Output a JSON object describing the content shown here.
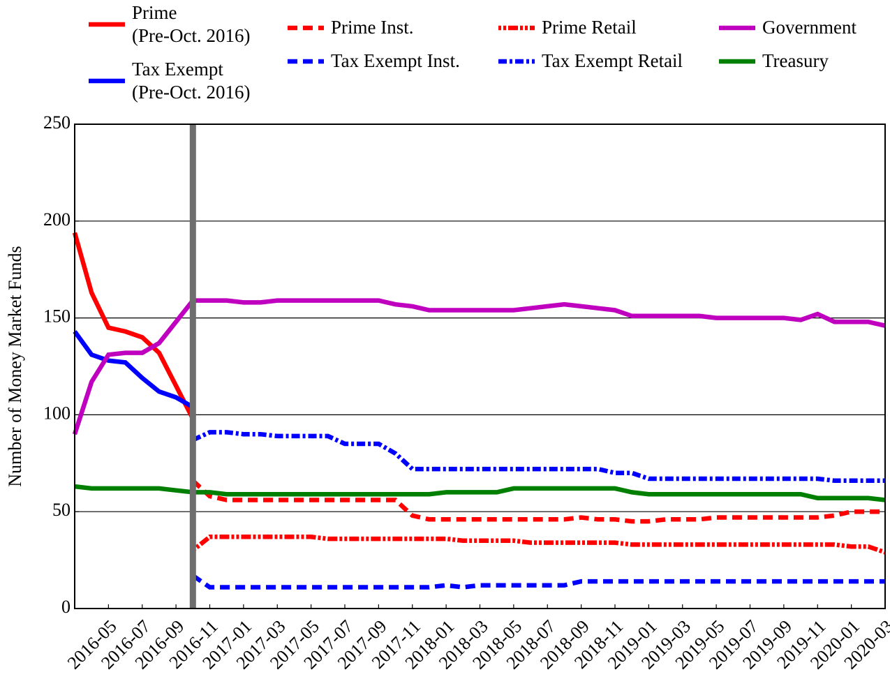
{
  "chart_data": {
    "type": "line",
    "y_label": "Number of Money Market Funds",
    "x": [
      "2016-03",
      "2016-04",
      "2016-05",
      "2016-06",
      "2016-07",
      "2016-08",
      "2016-09",
      "2016-10",
      "2016-11",
      "2016-12",
      "2017-01",
      "2017-02",
      "2017-03",
      "2017-04",
      "2017-05",
      "2017-06",
      "2017-07",
      "2017-08",
      "2017-09",
      "2017-10",
      "2017-11",
      "2017-12",
      "2018-01",
      "2018-02",
      "2018-03",
      "2018-04",
      "2018-05",
      "2018-06",
      "2018-07",
      "2018-08",
      "2018-09",
      "2018-10",
      "2018-11",
      "2018-12",
      "2019-01",
      "2019-02",
      "2019-03",
      "2019-04",
      "2019-05",
      "2019-06",
      "2019-07",
      "2019-08",
      "2019-09",
      "2019-10",
      "2019-11",
      "2019-12",
      "2020-01",
      "2020-02",
      "2020-03"
    ],
    "xlim": [
      "2016-03",
      "2020-03"
    ],
    "xticks": [
      "2016-05",
      "2016-07",
      "2016-09",
      "2016-11",
      "2017-01",
      "2017-03",
      "2017-05",
      "2017-07",
      "2017-09",
      "2017-11",
      "2018-01",
      "2018-03",
      "2018-05",
      "2018-07",
      "2018-09",
      "2018-11",
      "2019-01",
      "2019-03",
      "2019-05",
      "2019-07",
      "2019-09",
      "2019-11",
      "2020-01",
      "2020-03"
    ],
    "ylim": [
      0,
      250
    ],
    "yticks": [
      0,
      50,
      100,
      150,
      200,
      250
    ],
    "grid": true,
    "vline": {
      "x": "2016-10",
      "color": "#6e6e6e"
    },
    "series": [
      {
        "name": "Prime\n(Pre-Oct. 2016)",
        "color": "#ff0000",
        "dash": "solid",
        "values": [
          194,
          163,
          145,
          143,
          140,
          132,
          115,
          98,
          null,
          null,
          null,
          null,
          null,
          null,
          null,
          null,
          null,
          null,
          null,
          null,
          null,
          null,
          null,
          null,
          null,
          null,
          null,
          null,
          null,
          null,
          null,
          null,
          null,
          null,
          null,
          null,
          null,
          null,
          null,
          null,
          null,
          null,
          null,
          null,
          null,
          null,
          null,
          null,
          null
        ]
      },
      {
        "name": "Tax Exempt\n(Pre-Oct. 2016)",
        "color": "#0000ff",
        "dash": "solid",
        "values": [
          143,
          131,
          128,
          127,
          119,
          112,
          109,
          104,
          null,
          null,
          null,
          null,
          null,
          null,
          null,
          null,
          null,
          null,
          null,
          null,
          null,
          null,
          null,
          null,
          null,
          null,
          null,
          null,
          null,
          null,
          null,
          null,
          null,
          null,
          null,
          null,
          null,
          null,
          null,
          null,
          null,
          null,
          null,
          null,
          null,
          null,
          null,
          null,
          null
        ]
      },
      {
        "name": "Prime Inst.",
        "color": "#ff0000",
        "dash": "dashed",
        "values": [
          null,
          null,
          null,
          null,
          null,
          null,
          null,
          66,
          58,
          56,
          56,
          56,
          56,
          56,
          56,
          56,
          56,
          56,
          56,
          56,
          48,
          46,
          46,
          46,
          46,
          46,
          46,
          46,
          46,
          46,
          47,
          46,
          46,
          45,
          45,
          46,
          46,
          46,
          47,
          47,
          47,
          47,
          47,
          47,
          47,
          48,
          50,
          50,
          50
        ]
      },
      {
        "name": "Tax Exempt Inst.",
        "color": "#0000ff",
        "dash": "dashed",
        "values": [
          null,
          null,
          null,
          null,
          null,
          null,
          null,
          17,
          11,
          11,
          11,
          11,
          11,
          11,
          11,
          11,
          11,
          11,
          11,
          11,
          11,
          11,
          12,
          11,
          12,
          12,
          12,
          12,
          12,
          12,
          14,
          14,
          14,
          14,
          14,
          14,
          14,
          14,
          14,
          14,
          14,
          14,
          14,
          14,
          14,
          14,
          14,
          14,
          14
        ]
      },
      {
        "name": "Prime Retail",
        "color": "#ff0000",
        "dash": "dotted",
        "values": [
          null,
          null,
          null,
          null,
          null,
          null,
          null,
          30,
          37,
          37,
          37,
          37,
          37,
          37,
          37,
          36,
          36,
          36,
          36,
          36,
          36,
          36,
          36,
          35,
          35,
          35,
          35,
          34,
          34,
          34,
          34,
          34,
          34,
          33,
          33,
          33,
          33,
          33,
          33,
          33,
          33,
          33,
          33,
          33,
          33,
          33,
          32,
          32,
          29
        ]
      },
      {
        "name": "Tax Exempt Retail",
        "color": "#0000ff",
        "dash": "dashdot",
        "values": [
          null,
          null,
          null,
          null,
          null,
          null,
          null,
          87,
          91,
          91,
          90,
          90,
          89,
          89,
          89,
          89,
          85,
          85,
          85,
          80,
          72,
          72,
          72,
          72,
          72,
          72,
          72,
          72,
          72,
          72,
          72,
          72,
          70,
          70,
          67,
          67,
          67,
          67,
          67,
          67,
          67,
          67,
          67,
          67,
          67,
          66,
          66,
          66,
          66
        ]
      },
      {
        "name": "Government",
        "color": "#bf00bf",
        "dash": "solid",
        "values": [
          90,
          117,
          131,
          132,
          132,
          137,
          148,
          159,
          159,
          159,
          158,
          158,
          159,
          159,
          159,
          159,
          159,
          159,
          159,
          157,
          156,
          154,
          154,
          154,
          154,
          154,
          154,
          155,
          156,
          157,
          156,
          155,
          154,
          151,
          151,
          151,
          151,
          151,
          150,
          150,
          150,
          150,
          150,
          149,
          152,
          148,
          148,
          148,
          146
        ]
      },
      {
        "name": "Treasury",
        "color": "#007f00",
        "dash": "solid",
        "values": [
          63,
          62,
          62,
          62,
          62,
          62,
          61,
          60,
          60,
          59,
          59,
          59,
          59,
          59,
          59,
          59,
          59,
          59,
          59,
          59,
          59,
          59,
          60,
          60,
          60,
          60,
          62,
          62,
          62,
          62,
          62,
          62,
          62,
          60,
          59,
          59,
          59,
          59,
          59,
          59,
          59,
          59,
          59,
          59,
          57,
          57,
          57,
          57,
          56
        ]
      }
    ]
  }
}
